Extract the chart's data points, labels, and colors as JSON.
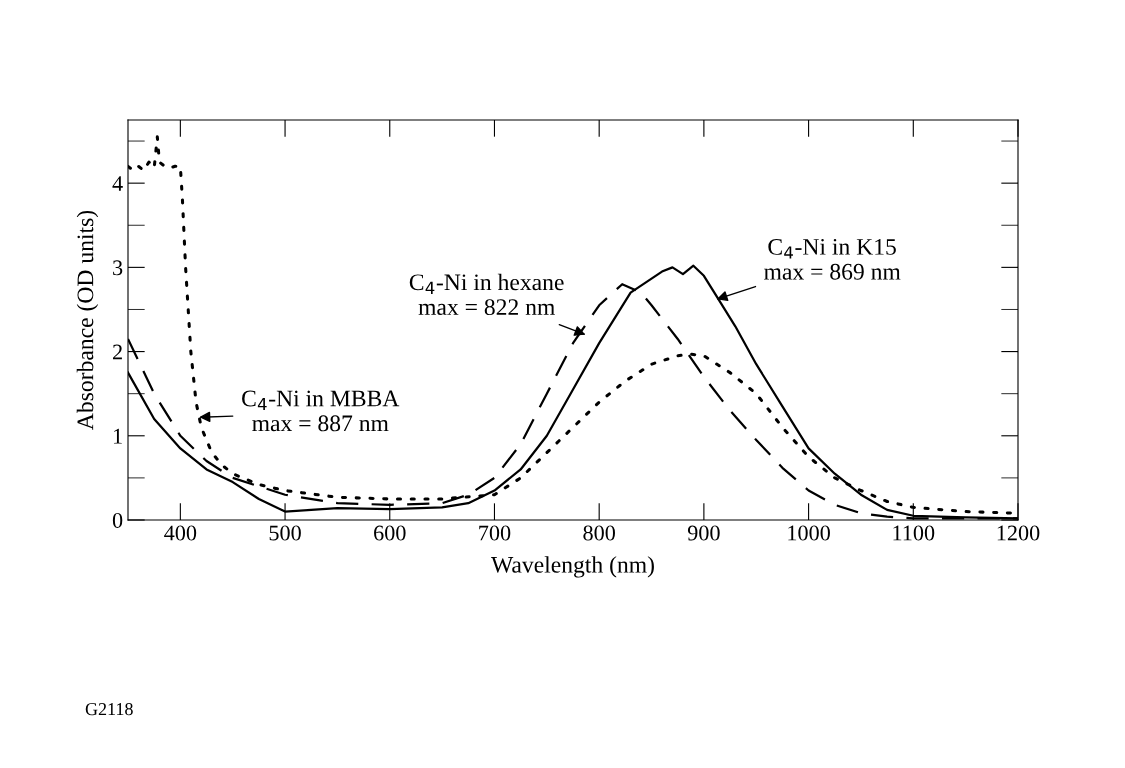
{
  "chart_data": {
    "type": "line",
    "xlabel": "Wavelength (nm)",
    "ylabel": "Absorbance (OD units)",
    "xlim": [
      350,
      1200
    ],
    "ylim": [
      0,
      4.75
    ],
    "xticks": [
      400,
      500,
      600,
      700,
      800,
      900,
      1000,
      1100,
      1200
    ],
    "yticks": [
      0,
      1,
      2,
      3,
      4
    ],
    "grid": false,
    "legend": false,
    "series": [
      {
        "color": "#000000",
        "line_style": "solid",
        "x": [
          350,
          375,
          400,
          425,
          450,
          475,
          500,
          550,
          600,
          650,
          675,
          700,
          725,
          750,
          775,
          800,
          830,
          860,
          870,
          880,
          890,
          900,
          910,
          930,
          950,
          975,
          1000,
          1025,
          1050,
          1075,
          1100,
          1150,
          1200
        ],
        "values": [
          1.75,
          1.2,
          0.85,
          0.6,
          0.45,
          0.25,
          0.1,
          0.14,
          0.13,
          0.15,
          0.2,
          0.35,
          0.6,
          1.0,
          1.55,
          2.1,
          2.7,
          2.95,
          3.0,
          2.92,
          3.02,
          2.9,
          2.7,
          2.3,
          1.85,
          1.35,
          0.85,
          0.55,
          0.3,
          0.12,
          0.05,
          0.03,
          0.02
        ]
      },
      {
        "color": "#000000",
        "line_style": "dashed",
        "x": [
          350,
          375,
          400,
          425,
          450,
          500,
          550,
          600,
          650,
          675,
          700,
          725,
          750,
          775,
          800,
          822,
          840,
          850,
          875,
          900,
          925,
          950,
          975,
          1000,
          1025,
          1050,
          1075,
          1100,
          1150,
          1200
        ],
        "values": [
          2.15,
          1.5,
          1.0,
          0.7,
          0.5,
          0.3,
          0.2,
          0.18,
          0.2,
          0.3,
          0.5,
          0.9,
          1.5,
          2.1,
          2.55,
          2.8,
          2.7,
          2.55,
          2.15,
          1.7,
          1.3,
          0.95,
          0.62,
          0.35,
          0.18,
          0.08,
          0.04,
          0.02,
          0.02,
          0.02
        ]
      },
      {
        "color": "#000000",
        "line_style": "dotted",
        "x": [
          350,
          355,
          360,
          365,
          370,
          375,
          378,
          380,
          385,
          390,
          395,
          400,
          402,
          405,
          410,
          415,
          420,
          430,
          440,
          450,
          475,
          500,
          550,
          600,
          650,
          700,
          725,
          750,
          775,
          800,
          825,
          850,
          875,
          887,
          900,
          925,
          950,
          975,
          1000,
          1025,
          1050,
          1075,
          1100,
          1150,
          1200
        ],
        "values": [
          4.2,
          4.15,
          4.2,
          4.15,
          4.25,
          4.18,
          4.55,
          4.25,
          4.2,
          4.18,
          4.2,
          4.2,
          3.8,
          3.0,
          2.0,
          1.4,
          1.1,
          0.8,
          0.65,
          0.55,
          0.42,
          0.35,
          0.27,
          0.25,
          0.25,
          0.3,
          0.5,
          0.8,
          1.1,
          1.4,
          1.65,
          1.85,
          1.95,
          1.97,
          1.95,
          1.75,
          1.5,
          1.1,
          0.75,
          0.5,
          0.35,
          0.22,
          0.15,
          0.1,
          0.08
        ]
      }
    ],
    "annotations": [
      {
        "text": "C$_{4}$-Ni in K15\nmax = 869 nm",
        "x": 912,
        "y": 2.62
      },
      {
        "text": "C$_{4}$-Ni in hexane\nmax = 822 nm",
        "x": 787,
        "y": 2.2
      },
      {
        "text": "C$_{4}$-Ni in MBBA\nmax = 887 nm",
        "x": 418,
        "y": 1.22
      },
      "G2118"
    ]
  }
}
